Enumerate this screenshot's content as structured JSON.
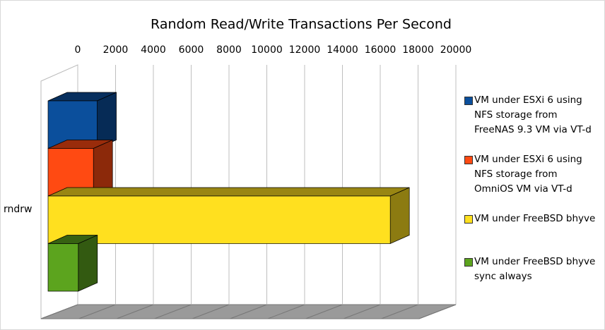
{
  "chart_data": {
    "type": "bar3d_horizontal",
    "title": "Random Read/Write Transactions Per Second",
    "categories": [
      "rndrw"
    ],
    "series": [
      {
        "name": "VM under ESXi 6 using NFS storage from FreeNAS 9.3 VM via VT-d",
        "color": "#0b4f9c",
        "values": [
          2600
        ]
      },
      {
        "name": "VM under ESXi 6 using NFS storage from OmniOS VM via VT-d",
        "color": "#ff4a12",
        "values": [
          2400
        ]
      },
      {
        "name": "VM under FreeBSD bhyve",
        "color": "#ffe01f",
        "values": [
          18100
        ]
      },
      {
        "name": "VM under FreeBSD bhyve sync always",
        "color": "#5ca41e",
        "values": [
          1600
        ]
      }
    ],
    "xlim": [
      0,
      20000
    ],
    "xticks": [
      0,
      2000,
      4000,
      6000,
      8000,
      10000,
      12000,
      14000,
      16000,
      18000,
      20000
    ],
    "grid": true,
    "legend": "right"
  }
}
